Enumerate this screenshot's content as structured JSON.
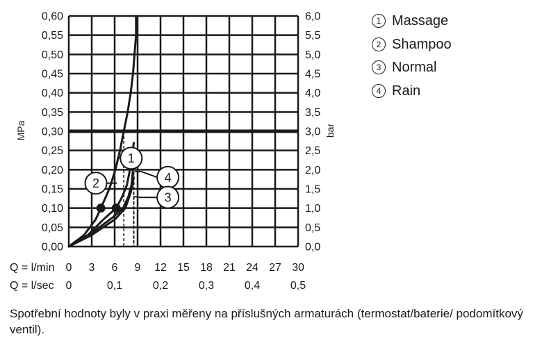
{
  "chart_data": {
    "type": "line",
    "y_left_label": "MPa",
    "y_right_label": "bar",
    "y_left_ticks": [
      "0,00",
      "0,05",
      "0,10",
      "0,15",
      "0,20",
      "0,25",
      "0,30",
      "0,35",
      "0,40",
      "0,45",
      "0,50",
      "0,55",
      "0,60"
    ],
    "y_right_ticks": [
      "0,0",
      "0,5",
      "1,0",
      "1,5",
      "2,0",
      "2,5",
      "3,0",
      "3,5",
      "4,0",
      "4,5",
      "5,0",
      "5,5",
      "6,0"
    ],
    "ylim": [
      0,
      0.6
    ],
    "xlim": [
      0,
      30
    ],
    "x_row1_label": "Q = l/min",
    "x_row1_ticks": [
      "0",
      "3",
      "6",
      "9",
      "12",
      "15",
      "18",
      "21",
      "24",
      "27",
      "30"
    ],
    "x_row2_label": "Q = l/sec",
    "x_row2_ticks": [
      "0",
      "0,1",
      "0,2",
      "0,3",
      "0,4",
      "0,5"
    ],
    "x_row2_values": [
      0,
      6,
      12,
      18,
      24,
      30
    ],
    "reference_line": {
      "y": 0.3
    },
    "series": [
      {
        "name": "Massage",
        "marker": "1",
        "points": [
          [
            0,
            0
          ],
          [
            2,
            0.03
          ],
          [
            3.5,
            0.07
          ],
          [
            4.2,
            0.1
          ],
          [
            5.3,
            0.15
          ],
          [
            6.1,
            0.2
          ],
          [
            6.7,
            0.25
          ],
          [
            7.2,
            0.3
          ],
          [
            7.7,
            0.35
          ],
          [
            8.1,
            0.4
          ],
          [
            8.4,
            0.45
          ],
          [
            8.6,
            0.5
          ],
          [
            8.8,
            0.55
          ],
          [
            8.8,
            0.6
          ]
        ],
        "dot": [
          4.2,
          0.1
        ],
        "dashed_drop": [
          7.2,
          0.3
        ]
      },
      {
        "name": "Shampoo",
        "marker": "2",
        "points": [
          [
            0,
            0
          ],
          [
            2.5,
            0.03
          ],
          [
            4.5,
            0.07
          ],
          [
            6.2,
            0.1
          ],
          [
            7,
            0.13
          ],
          [
            7.6,
            0.16
          ],
          [
            8,
            0.2
          ],
          [
            8.3,
            0.24
          ],
          [
            8.5,
            0.27
          ]
        ],
        "dot": [
          6.2,
          0.1
        ],
        "dashed_drop": [
          8.5,
          0.27
        ]
      },
      {
        "name": "Normal",
        "marker": "3",
        "points": [
          [
            0,
            0
          ],
          [
            3,
            0.03
          ],
          [
            6,
            0.07
          ],
          [
            7.4,
            0.1
          ],
          [
            8.1,
            0.14
          ],
          [
            8.5,
            0.18
          ]
        ],
        "dashed_drop": [
          8.5,
          0.18
        ]
      },
      {
        "name": "Rain",
        "marker": "4",
        "points": [
          [
            0,
            0
          ],
          [
            3,
            0.035
          ],
          [
            5.7,
            0.075
          ],
          [
            7.1,
            0.1
          ],
          [
            7.8,
            0.13
          ],
          [
            8.2,
            0.16
          ],
          [
            8.4,
            0.2
          ],
          [
            8.5,
            0.23
          ]
        ],
        "dashed_drop": [
          8.5,
          0.23
        ]
      }
    ],
    "callouts": [
      {
        "marker": "1",
        "points": [
          [
            6.3,
            0.23
          ],
          [
            6.8,
            0.23
          ]
        ]
      },
      {
        "marker": "2",
        "points": [
          [
            5,
            0.165
          ],
          [
            6.3,
            0.165
          ]
        ]
      },
      {
        "marker": "4",
        "points": [
          [
            8.6,
            0.195
          ],
          [
            9.5,
            0.195
          ],
          [
            11.6,
            0.18
          ]
        ]
      },
      {
        "marker": "3",
        "points": [
          [
            8.5,
            0.13
          ],
          [
            9.5,
            0.128
          ],
          [
            11.6,
            0.128
          ]
        ]
      }
    ],
    "grid": true
  },
  "legend": [
    {
      "num": "1",
      "label": "Massage"
    },
    {
      "num": "2",
      "label": "Shampoo"
    },
    {
      "num": "3",
      "label": "Normal"
    },
    {
      "num": "4",
      "label": "Rain"
    }
  ],
  "caption": "Spotřební hodnoty byly v praxi měřeny na příslušných armaturách (termostat/baterie/ podomítkový ventil)."
}
